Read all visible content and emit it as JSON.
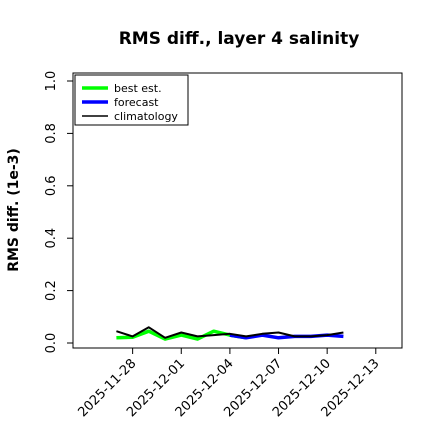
{
  "chart_data": {
    "type": "line",
    "title": "RMS diff., layer 4 salinity",
    "xlabel": "",
    "ylabel": "RMS diff. (1e-3)",
    "ylim": [
      0.0,
      1.0
    ],
    "yticks": [
      "0.0",
      "0.2",
      "0.4",
      "0.6",
      "0.8",
      "1.0"
    ],
    "xlim": [
      "2025-11-25",
      "2025-12-14"
    ],
    "xticks": [
      {
        "label": "2025-11-28",
        "color": "#000000"
      },
      {
        "label": "2025-12-01",
        "color": "#000000"
      },
      {
        "label": "2025-12-04",
        "color": "#008000"
      },
      {
        "label": "2025-12-07",
        "color": "#000000"
      },
      {
        "label": "2025-12-10",
        "color": "#000000"
      },
      {
        "label": "2025-12-13",
        "color": "#000000"
      }
    ],
    "grid": false,
    "legend_position": "top-left",
    "series": [
      {
        "name": "best est.",
        "color": "#00ff00",
        "x": [
          "2025-11-27",
          "2025-11-28",
          "2025-11-29",
          "2025-11-30",
          "2025-12-01",
          "2025-12-02",
          "2025-12-03",
          "2025-12-04",
          "2025-12-05"
        ],
        "values": [
          0.02,
          0.022,
          0.045,
          0.015,
          0.03,
          0.015,
          0.045,
          0.03,
          0.02
        ]
      },
      {
        "name": "forecast",
        "color": "#0000ff",
        "x": [
          "2025-12-04",
          "2025-12-05",
          "2025-12-06",
          "2025-12-07",
          "2025-12-08",
          "2025-12-09",
          "2025-12-10",
          "2025-12-11"
        ],
        "values": [
          0.03,
          0.02,
          0.03,
          0.02,
          0.025,
          0.025,
          0.03,
          0.025
        ]
      },
      {
        "name": "climatology",
        "color": "#000000",
        "x": [
          "2025-11-27",
          "2025-11-28",
          "2025-11-29",
          "2025-11-30",
          "2025-12-01",
          "2025-12-02",
          "2025-12-03",
          "2025-12-04",
          "2025-12-05",
          "2025-12-06",
          "2025-12-07",
          "2025-12-08",
          "2025-12-09",
          "2025-12-10",
          "2025-12-11"
        ],
        "values": [
          0.045,
          0.025,
          0.06,
          0.02,
          0.04,
          0.025,
          0.03,
          0.035,
          0.025,
          0.035,
          0.04,
          0.025,
          0.025,
          0.03,
          0.04
        ]
      }
    ]
  }
}
